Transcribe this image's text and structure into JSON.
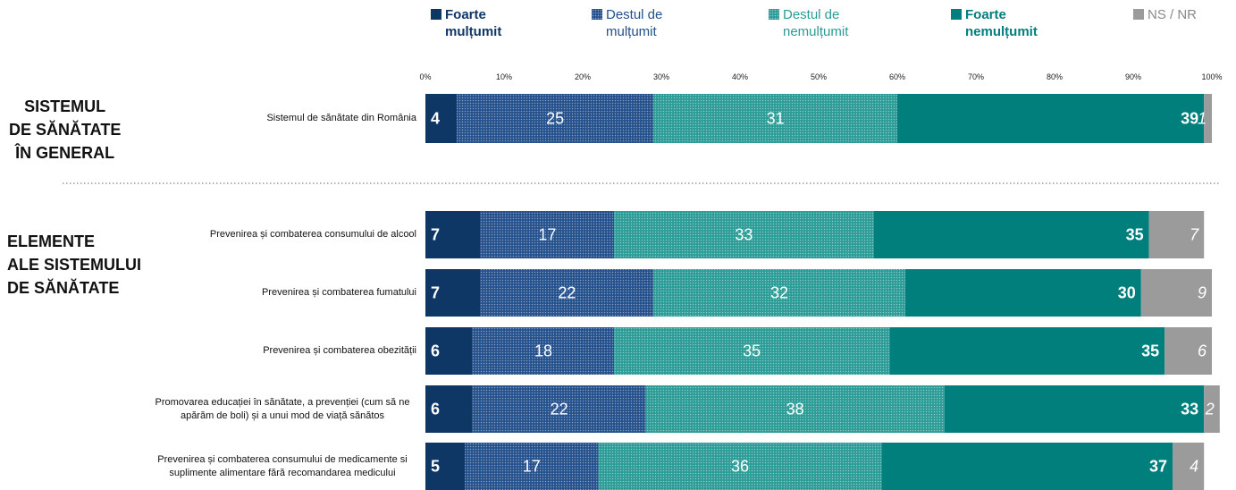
{
  "chart_data": {
    "type": "stacked_barh",
    "legend_position": "top",
    "xlim": [
      0,
      100
    ],
    "xticks": [
      {
        "value": 0,
        "label": "0%"
      },
      {
        "value": 10,
        "label": "10%"
      },
      {
        "value": 20,
        "label": "20%"
      },
      {
        "value": 30,
        "label": "30%"
      },
      {
        "value": 40,
        "label": "40%"
      },
      {
        "value": 50,
        "label": "50%"
      },
      {
        "value": 60,
        "label": "60%"
      },
      {
        "value": 70,
        "label": "70%"
      },
      {
        "value": 80,
        "label": "80%"
      },
      {
        "value": 90,
        "label": "90%"
      },
      {
        "value": 100,
        "label": "100%"
      }
    ],
    "groups": [
      {
        "label": "SISTEMUL\nDE SĂNĂTATE\nÎN GENERAL"
      },
      {
        "label": "ELEMENTE\nALE SISTEMULUI\nDE SĂNĂTATE"
      }
    ],
    "categories": [
      "Sistemul de sănătate din România",
      "Prevenirea și combaterea consumului de alcool",
      "Prevenirea și combaterea fumatului",
      "Prevenirea și combaterea obezității",
      "Promovarea educației în sănătate, a prevenției (cum să ne apărăm de boli) și a unui mod de viață sănătos",
      "Prevenirea și combaterea consumului de medicamente si suplimente alimentare fără recomandarea medicului"
    ],
    "series": [
      {
        "name": "Foarte mulțumit",
        "color": "#0f3766",
        "values": [
          4,
          7,
          7,
          6,
          6,
          5
        ]
      },
      {
        "name": "Destul de mulțumit",
        "color": "#24508c",
        "pattern": "dotted",
        "values": [
          25,
          17,
          22,
          18,
          22,
          17
        ]
      },
      {
        "name": "Destul de nemulțumit",
        "color": "#2b9b96",
        "pattern": "dotted",
        "values": [
          31,
          33,
          32,
          35,
          38,
          36
        ]
      },
      {
        "name": "Foarte nemulțumit",
        "color": "#007f7c",
        "values": [
          39,
          35,
          30,
          35,
          33,
          37
        ]
      },
      {
        "name": "NS / NR",
        "color": "#9b9b9b",
        "values": [
          1,
          7,
          9,
          6,
          2,
          4
        ]
      }
    ]
  }
}
